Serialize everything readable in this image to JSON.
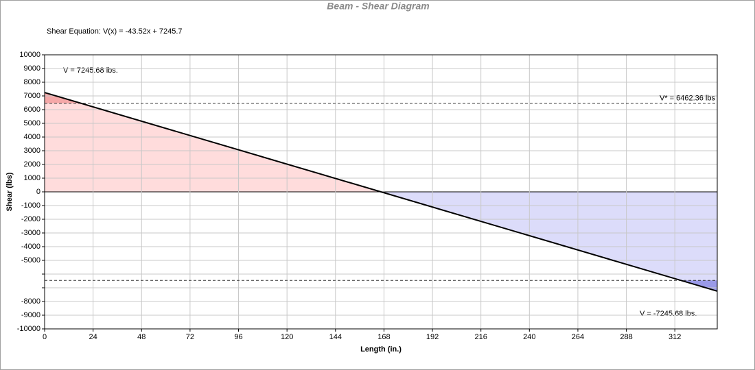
{
  "chart_data": {
    "type": "line",
    "title": "Beam - Shear Diagram",
    "annotations": [
      "Shear Equation:  V(x) = -43.52x + 7245.7",
      "V = 7245.68 lbs.",
      "V = -7245.68 lbs."
    ],
    "x_label": "Length (in.)",
    "y_label": "Shear (lbs)",
    "x": [
      0,
      333
    ],
    "series": [
      {
        "name": "Shear",
        "color": "#000000",
        "values": [
          7245.68,
          -7245.68
        ]
      }
    ],
    "reference_lines": [
      {
        "value": 6462.36,
        "label": "V* = 6462.36 lbs"
      },
      {
        "value": -6462.36
      }
    ],
    "positive_fill": "#ffdcdc",
    "positive_excess_fill": "#f5a8a8",
    "negative_fill": "#dcdcfa",
    "negative_excess_fill": "#9a9ae8",
    "xlim": [
      0,
      333
    ],
    "ylim": [
      -10000,
      10000
    ],
    "xticks": [
      0,
      24,
      48,
      72,
      96,
      120,
      144,
      168,
      192,
      216,
      240,
      264,
      288,
      312
    ],
    "yticks": [
      10000,
      9000,
      8000,
      7000,
      6000,
      5000,
      4000,
      3000,
      2000,
      1000,
      0,
      -1000,
      -2000,
      -3000,
      -4000,
      -5000,
      {
        "value": -6000,
        "label": null
      },
      {
        "value": -7000,
        "label": null
      },
      -8000,
      -9000,
      -10000
    ],
    "grid": true
  }
}
